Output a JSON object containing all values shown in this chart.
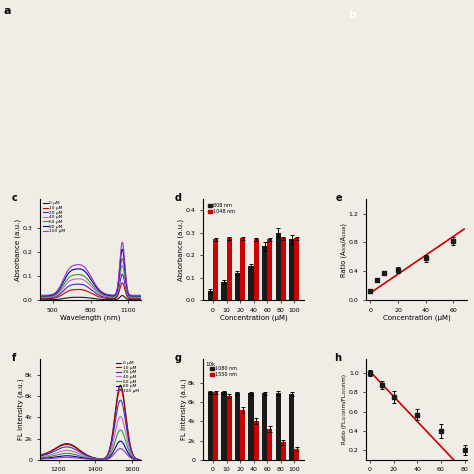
{
  "panel_d": {
    "concentrations": [
      0,
      10,
      20,
      40,
      60,
      80,
      100
    ],
    "bar808_means": [
      0.04,
      0.08,
      0.12,
      0.15,
      0.24,
      0.3,
      0.27
    ],
    "bar808_errors": [
      0.01,
      0.01,
      0.01,
      0.01,
      0.02,
      0.02,
      0.02
    ],
    "bar1048_means": [
      0.27,
      0.275,
      0.275,
      0.27,
      0.27,
      0.275,
      0.275
    ],
    "bar1048_errors": [
      0.008,
      0.006,
      0.006,
      0.007,
      0.007,
      0.007,
      0.007
    ],
    "ylabel": "Absorbance (a.u.)",
    "xlabel": "Concentration (μM)",
    "label808": "808 nm",
    "label1048": "1048 nm",
    "color808": "#1a1a1a",
    "color1048": "#cc0000",
    "ylim": [
      0,
      0.45
    ],
    "yticks": [
      0.0,
      0.1,
      0.2,
      0.3,
      0.4
    ]
  },
  "panel_e": {
    "concentrations": [
      0,
      5,
      10,
      20,
      40,
      60
    ],
    "ratio_means": [
      0.12,
      0.28,
      0.38,
      0.42,
      0.58,
      0.82
    ],
    "ratio_errors": [
      0.02,
      0.03,
      0.03,
      0.04,
      0.05,
      0.05
    ],
    "fit_slope": 0.013,
    "fit_intercept": 0.1,
    "ylabel": "Ratio (A₀₀₈/A₁₀₄₈)",
    "xlabel": "Concentration (μM)",
    "xlim": [
      -3,
      70
    ],
    "ylim": [
      0.0,
      1.4
    ],
    "yticks": [
      0.0,
      0.4,
      0.8,
      1.2
    ],
    "fit_color": "#cc0000",
    "point_color": "#1a1a1a"
  },
  "panel_g": {
    "concentrations": [
      0,
      10,
      20,
      40,
      60,
      80,
      100
    ],
    "bar1080_means": [
      7000,
      7000,
      6900,
      6900,
      6900,
      6900,
      6800
    ],
    "bar1080_errors": [
      150,
      150,
      150,
      150,
      150,
      200,
      200
    ],
    "bar1550_means": [
      7000,
      6600,
      5200,
      4000,
      3200,
      1800,
      1100
    ],
    "bar1550_errors": [
      150,
      200,
      300,
      300,
      350,
      300,
      200
    ],
    "ylabel": "FL intensity (a.u.)",
    "xlabel": "Concentration (μM)",
    "label1080": "1080 nm",
    "label1550": "1550 nm",
    "color1080": "#1a1a1a",
    "color1550": "#cc0000",
    "ylim": [
      0,
      10500
    ],
    "yticks": [
      0,
      2000,
      4000,
      6000,
      8000
    ],
    "yticklabels": [
      "0",
      "2k",
      "4k",
      "6k",
      "8k"
    ]
  },
  "panel_h": {
    "concentrations": [
      0,
      10,
      20,
      40,
      60,
      80
    ],
    "ratio_means": [
      1.0,
      0.88,
      0.75,
      0.57,
      0.4,
      0.2
    ],
    "ratio_errors": [
      0.03,
      0.04,
      0.06,
      0.06,
      0.07,
      0.05
    ],
    "fit_slope": -0.013,
    "fit_intercept": 1.02,
    "ylabel": "Ratio (FL₁₀₀₀nm/FL₁₅₅₀nm)",
    "xlabel": "Concentration (μM)",
    "xlim": [
      -3,
      82
    ],
    "ylim": [
      0.1,
      1.15
    ],
    "yticks": [
      0.2,
      0.4,
      0.6,
      0.8,
      1.0
    ],
    "fit_color": "#cc0000",
    "point_color": "#1a1a1a"
  },
  "panel_c_spectrum": {
    "legend_colors": [
      "#1a1a1a",
      "#cc0000",
      "#3333cc",
      "#cc66cc",
      "#339933",
      "#000099",
      "#9933cc"
    ],
    "legend_labels": [
      "0 μM",
      "10 μM",
      "20 μM",
      "40 μM",
      "60 μM",
      "80 μM",
      "100 μM"
    ],
    "xlabel": "Wavelength (nm)",
    "ylabel": "Absorbance (a.u.)",
    "xlim": [
      400,
      1200
    ],
    "ylim": [
      0,
      0.45
    ]
  },
  "panel_f_spectrum": {
    "legend_colors": [
      "#1a1a1a",
      "#cc0000",
      "#3333cc",
      "#cc66cc",
      "#339933",
      "#000099",
      "#9933cc"
    ],
    "legend_labels": [
      "0 μM",
      "10 μM",
      "20 μM",
      "40 μM",
      "60 μM",
      "80 μM",
      "100 μM"
    ],
    "xlabel": "Wavelength (nm)",
    "ylabel": "FL intensity (a.u.)",
    "xlim": [
      1100,
      1650
    ],
    "ylim": [
      0,
      10000
    ]
  },
  "background_color": "#f0ece6"
}
